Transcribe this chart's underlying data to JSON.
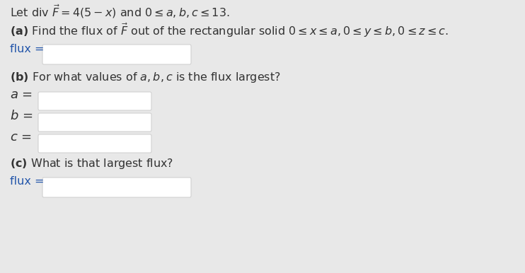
{
  "background_color": "#e8e8e8",
  "white_box_color": "#ffffff",
  "border_color": "#cccccc",
  "text_color_dark": "#333333",
  "text_color_blue": "#1a3a6b",
  "text_color_flux": "#2255aa",
  "font_size": 11.5,
  "fig_width": 7.42,
  "fig_height": 3.86,
  "dpi": 100
}
